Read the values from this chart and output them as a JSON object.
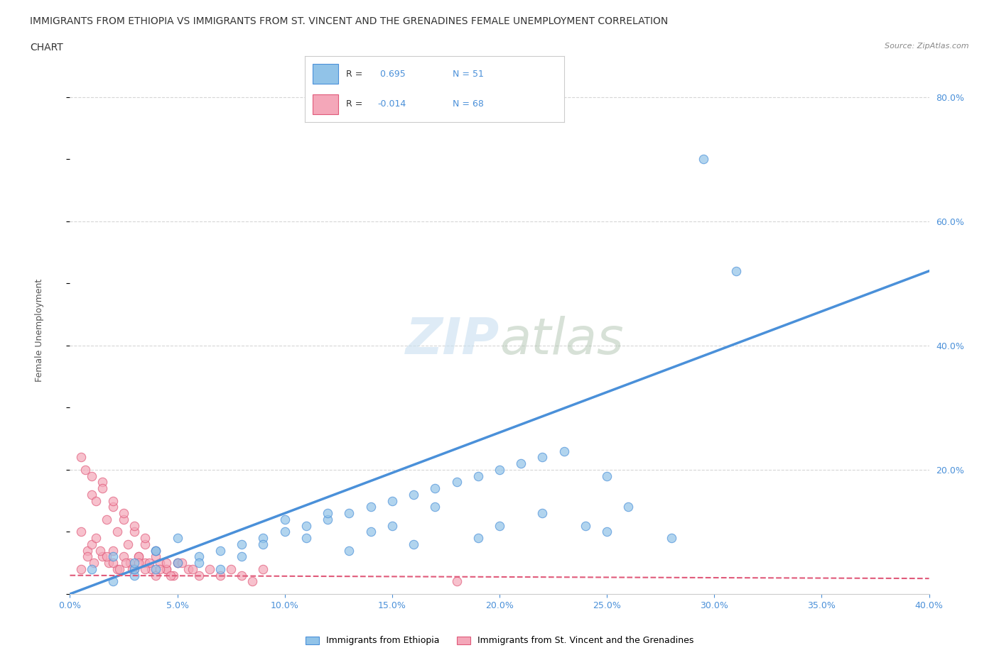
{
  "title_line1": "IMMIGRANTS FROM ETHIOPIA VS IMMIGRANTS FROM ST. VINCENT AND THE GRENADINES FEMALE UNEMPLOYMENT CORRELATION",
  "title_line2": "CHART",
  "source_text": "Source: ZipAtlas.com",
  "ylabel": "Female Unemployment",
  "xlim": [
    0.0,
    0.4
  ],
  "ylim": [
    0.0,
    0.85
  ],
  "yticks": [
    0.0,
    0.2,
    0.4,
    0.6,
    0.8
  ],
  "ytick_labels": [
    "",
    "20.0%",
    "40.0%",
    "60.0%",
    "80.0%"
  ],
  "color_ethiopia": "#91C3E8",
  "color_stvincent": "#F4A7B9",
  "line_color_ethiopia": "#4A90D9",
  "line_color_stvincent": "#E05A7A",
  "background_color": "#ffffff",
  "ethiopia_scatter_x": [
    0.02,
    0.03,
    0.04,
    0.05,
    0.06,
    0.07,
    0.08,
    0.09,
    0.1,
    0.11,
    0.12,
    0.13,
    0.14,
    0.15,
    0.16,
    0.17,
    0.18,
    0.19,
    0.2,
    0.21,
    0.22,
    0.23,
    0.24,
    0.25,
    0.26,
    0.03,
    0.04,
    0.05,
    0.06,
    0.07,
    0.08,
    0.09,
    0.1,
    0.11,
    0.12,
    0.13,
    0.14,
    0.15,
    0.16,
    0.17,
    0.19,
    0.2,
    0.22,
    0.25,
    0.28,
    0.01,
    0.02,
    0.03,
    0.04,
    0.295,
    0.31
  ],
  "ethiopia_scatter_y": [
    0.02,
    0.03,
    0.04,
    0.05,
    0.06,
    0.07,
    0.08,
    0.09,
    0.1,
    0.11,
    0.12,
    0.13,
    0.14,
    0.15,
    0.16,
    0.17,
    0.18,
    0.19,
    0.2,
    0.21,
    0.22,
    0.23,
    0.11,
    0.19,
    0.14,
    0.04,
    0.07,
    0.09,
    0.05,
    0.04,
    0.06,
    0.08,
    0.12,
    0.09,
    0.13,
    0.07,
    0.1,
    0.11,
    0.08,
    0.14,
    0.09,
    0.11,
    0.13,
    0.1,
    0.09,
    0.04,
    0.06,
    0.05,
    0.07,
    0.7,
    0.52
  ],
  "stvincent_scatter_x": [
    0.005,
    0.008,
    0.01,
    0.012,
    0.015,
    0.018,
    0.02,
    0.022,
    0.025,
    0.028,
    0.03,
    0.032,
    0.035,
    0.038,
    0.04,
    0.042,
    0.045,
    0.048,
    0.05,
    0.055,
    0.06,
    0.065,
    0.07,
    0.075,
    0.08,
    0.085,
    0.09,
    0.01,
    0.015,
    0.02,
    0.025,
    0.03,
    0.035,
    0.04,
    0.045,
    0.05,
    0.007,
    0.012,
    0.017,
    0.022,
    0.027,
    0.032,
    0.037,
    0.042,
    0.047,
    0.052,
    0.057,
    0.005,
    0.01,
    0.015,
    0.02,
    0.025,
    0.03,
    0.035,
    0.04,
    0.18,
    0.045,
    0.005,
    0.008,
    0.011,
    0.014,
    0.017,
    0.02,
    0.023,
    0.026,
    0.029,
    0.032,
    0.035
  ],
  "stvincent_scatter_y": [
    0.1,
    0.07,
    0.08,
    0.09,
    0.06,
    0.05,
    0.07,
    0.04,
    0.06,
    0.05,
    0.04,
    0.06,
    0.05,
    0.04,
    0.03,
    0.05,
    0.04,
    0.03,
    0.05,
    0.04,
    0.03,
    0.04,
    0.03,
    0.04,
    0.03,
    0.02,
    0.04,
    0.16,
    0.18,
    0.14,
    0.12,
    0.1,
    0.08,
    0.06,
    0.04,
    0.05,
    0.2,
    0.15,
    0.12,
    0.1,
    0.08,
    0.06,
    0.05,
    0.04,
    0.03,
    0.05,
    0.04,
    0.22,
    0.19,
    0.17,
    0.15,
    0.13,
    0.11,
    0.09,
    0.07,
    0.02,
    0.05,
    0.04,
    0.06,
    0.05,
    0.07,
    0.06,
    0.05,
    0.04,
    0.05,
    0.04,
    0.05,
    0.04
  ],
  "ethiopia_trend_x": [
    0.0,
    0.4
  ],
  "ethiopia_trend_y": [
    0.0,
    0.52
  ],
  "stvincent_trend_x": [
    0.0,
    0.4
  ],
  "stvincent_trend_y": [
    0.03,
    0.025
  ],
  "xtick_vals": [
    0.0,
    0.05,
    0.1,
    0.15,
    0.2,
    0.25,
    0.3,
    0.35,
    0.4
  ],
  "xtick_labels": [
    "0.0%",
    "5.0%",
    "10.0%",
    "15.0%",
    "20.0%",
    "25.0%",
    "30.0%",
    "35.0%",
    "40.0%"
  ]
}
